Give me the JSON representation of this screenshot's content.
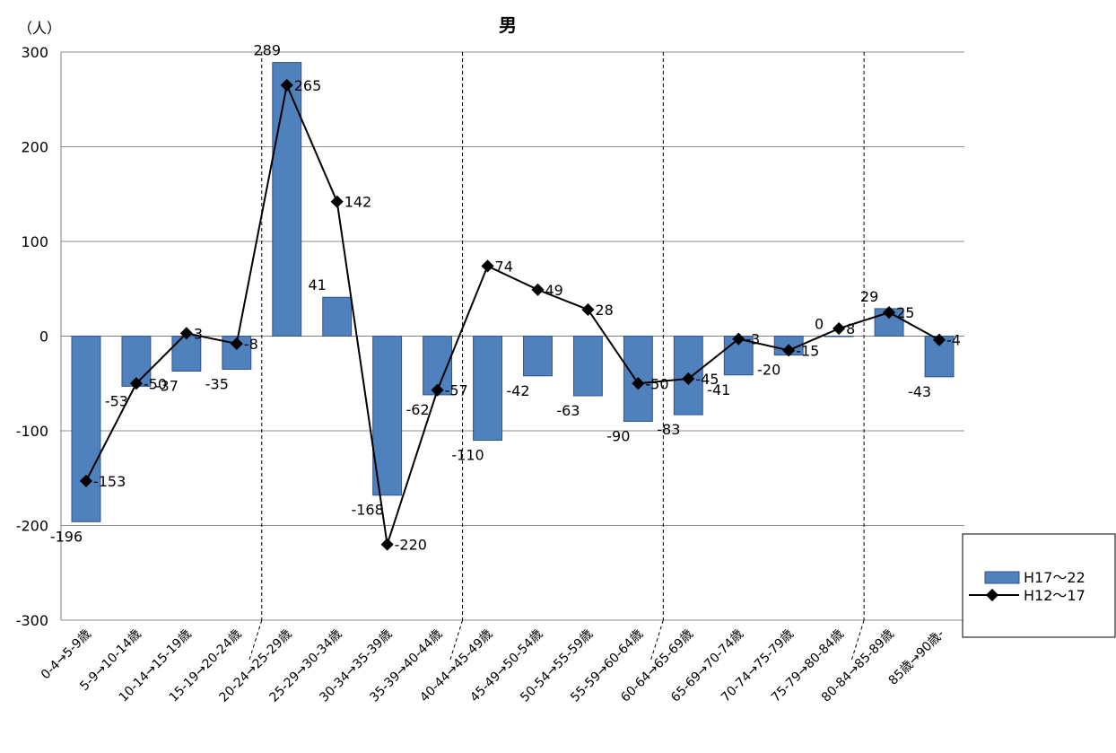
{
  "chart_data": {
    "type": "bar",
    "title": "男",
    "ylabel": "（人）",
    "xlabel": "",
    "ylim": [
      -300,
      300
    ],
    "yticks": [
      -300,
      -200,
      -100,
      0,
      100,
      200,
      300
    ],
    "grid": true,
    "legend_position": "right",
    "categories": [
      "0-4→5-9歳",
      "5-9→10-14歳",
      "10-14→15-19歳",
      "15-19→20-24歳",
      "20-24→25-29歳",
      "25-29→30-34歳",
      "30-34→35-39歳",
      "35-39→40-44歳",
      "40-44→45-49歳",
      "45-49→50-54歳",
      "50-54→55-59歳",
      "55-59→60-64歳",
      "60-64→65-69歳",
      "65-69→70-74歳",
      "70-74→75-79歳",
      "75-79→80-84歳",
      "80-84→85-89歳",
      "85歳→90歳-"
    ],
    "series": [
      {
        "name": "H17〜22",
        "kind": "bar",
        "color": "#4F81BD",
        "values": [
          -196,
          -53,
          -37,
          -35,
          289,
          41,
          -168,
          -62,
          -110,
          -42,
          -63,
          -90,
          -83,
          -41,
          -20,
          0,
          29,
          -43
        ],
        "labels": [
          "-196",
          "-53",
          "-37",
          "-35",
          "289",
          "41",
          "-168",
          "-62",
          "-110",
          "-42",
          "-63",
          "-90",
          "-83",
          "-41",
          "-20",
          "0",
          "29",
          "-43"
        ]
      },
      {
        "name": "H12〜17",
        "kind": "line",
        "color": "#000000",
        "values": [
          -153,
          -50,
          3,
          -8,
          265,
          142,
          -220,
          -57,
          74,
          49,
          28,
          -50,
          -45,
          -3,
          -15,
          8,
          25,
          -4
        ],
        "labels": [
          "-153",
          "-50",
          "3",
          "-8",
          "265",
          "142",
          "-220",
          "-57",
          "74",
          "49",
          "28",
          "-50",
          "-45",
          "-3",
          "-15",
          "8",
          "25",
          "-4"
        ]
      }
    ],
    "group_separators_after": [
      3,
      7,
      11,
      15
    ]
  }
}
